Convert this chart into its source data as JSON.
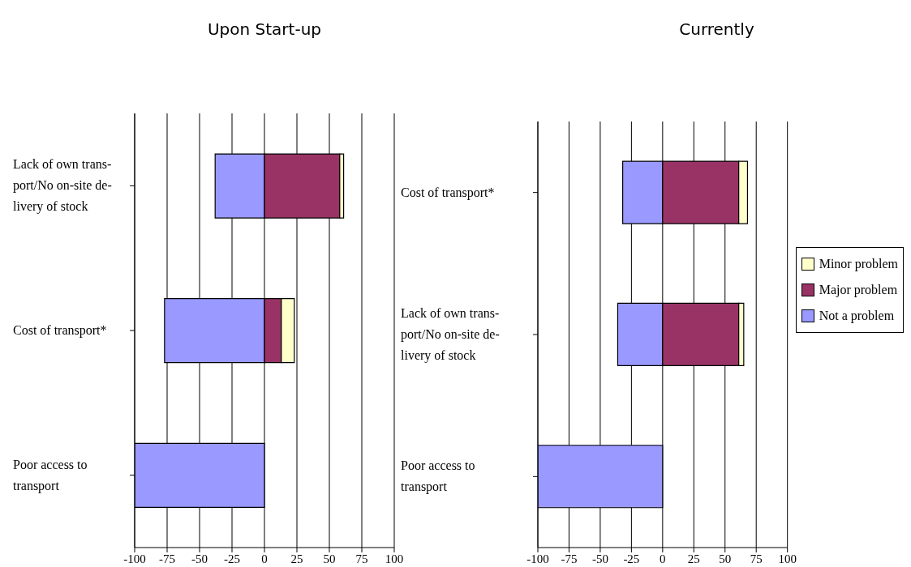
{
  "chart_data": [
    {
      "type": "bar",
      "title": "Upon Start-up",
      "orientation": "horizontal",
      "stacked": true,
      "categories": [
        "Lack of own trans-\nport/No on-site de-\nlivery of stock",
        "Cost of transport*",
        "Poor access to\ntransport"
      ],
      "series": [
        {
          "color": "#9999ff",
          "values": [
            -38,
            -77,
            -100
          ]
        },
        {
          "color": "#993366",
          "values": [
            58,
            13,
            0
          ]
        },
        {
          "color": "#ffffcc",
          "values": [
            3,
            10,
            0
          ]
        }
      ],
      "xlim": [
        -100,
        100
      ],
      "xticks": [
        -100,
        -75,
        -50,
        -25,
        0,
        25,
        50,
        75,
        100
      ],
      "grid": "x",
      "legend": false
    },
    {
      "type": "bar",
      "title": "Currently",
      "orientation": "horizontal",
      "stacked": true,
      "categories": [
        "Cost of transport*",
        "Lack of own trans-\nport/No on-site de-\nlivery of stock",
        "Poor access to\ntransport"
      ],
      "series": [
        {
          "name": "Not a problem",
          "color": "#9999ff",
          "values": [
            -32,
            -36,
            -100
          ]
        },
        {
          "name": "Major problem",
          "color": "#993366",
          "values": [
            61,
            61,
            0
          ]
        },
        {
          "name": "Minor problem",
          "color": "#ffffcc",
          "values": [
            7,
            4,
            0
          ]
        }
      ],
      "xlim": [
        -100,
        100
      ],
      "xticks": [
        -100,
        -75,
        -50,
        -25,
        0,
        25,
        50,
        75,
        100
      ],
      "grid": "x",
      "legend": "right"
    }
  ]
}
